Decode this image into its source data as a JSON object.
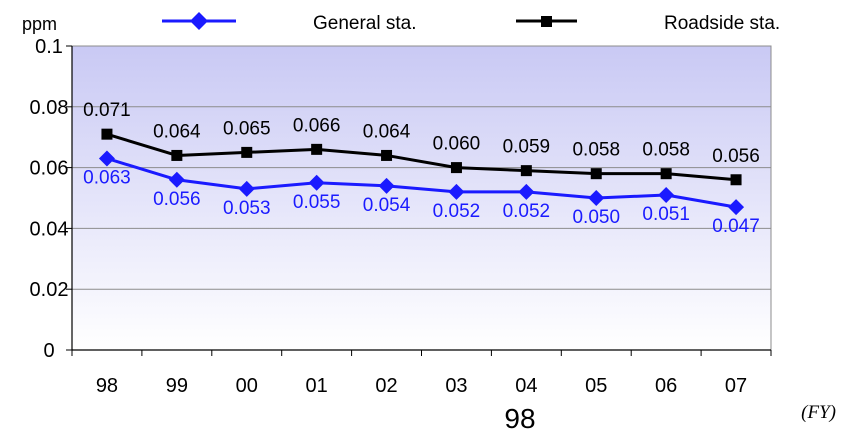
{
  "chart_data": {
    "type": "line",
    "y_unit": "ppm",
    "x_unit": "(FY)",
    "x_center_label": "98",
    "categories": [
      "98",
      "99",
      "00",
      "01",
      "02",
      "03",
      "04",
      "05",
      "06",
      "07"
    ],
    "ylim": [
      0,
      0.1
    ],
    "y_ticks": [
      "0",
      "0.02",
      "0.04",
      "0.06",
      "0.08",
      "0.1"
    ],
    "y_tick_values": [
      0,
      0.02,
      0.04,
      0.06,
      0.08,
      0.1
    ],
    "legend_position": "top",
    "series": [
      {
        "name": "General sta.",
        "marker": "diamond",
        "color": "#1a1aff",
        "values": [
          0.063,
          0.056,
          0.053,
          0.055,
          0.054,
          0.052,
          0.052,
          0.05,
          0.051,
          0.047
        ],
        "labels": [
          "0.063",
          "0.056",
          "0.053",
          "0.055",
          "0.054",
          "0.052",
          "0.052",
          "0.050",
          "0.051",
          "0.047"
        ]
      },
      {
        "name": "Roadside sta.",
        "marker": "square",
        "color": "#000000",
        "values": [
          0.071,
          0.064,
          0.065,
          0.066,
          0.064,
          0.06,
          0.059,
          0.058,
          0.058,
          0.056
        ],
        "labels": [
          "0.071",
          "0.064",
          "0.065",
          "0.066",
          "0.064",
          "0.060",
          "0.059",
          "0.058",
          "0.058",
          "0.056"
        ]
      }
    ],
    "gradient_top": "#c9c9f4",
    "gradient_bottom": "#ffffff"
  }
}
